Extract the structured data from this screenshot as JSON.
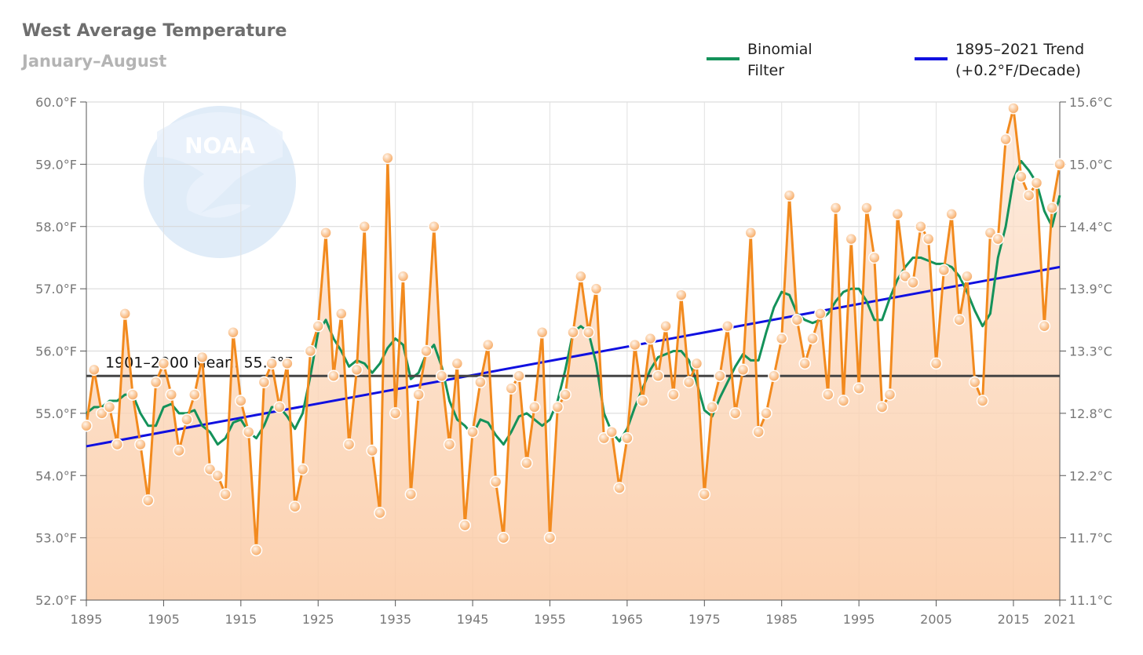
{
  "chart_data": {
    "type": "line",
    "title": "West Average Temperature",
    "subtitle": "January–August",
    "legend": [
      {
        "label": "Binomial\nFilter",
        "color": "#14925a"
      },
      {
        "label": "1895–2021 Trend\n(+0.2°F/Decade)",
        "color": "#1010e0"
      }
    ],
    "legend_position": "top-right",
    "mean_label": "1901–2000 Mean: 55.6°F",
    "mean_value": 55.6,
    "ylim": [
      52,
      60
    ],
    "xlim": [
      1895,
      2021
    ],
    "y_ticks_left": [
      "52.0°F",
      "53.0°F",
      "54.0°F",
      "55.0°F",
      "56.0°F",
      "57.0°F",
      "58.0°F",
      "59.0°F",
      "60.0°F"
    ],
    "y_ticks_right": [
      "11.1°C",
      "11.7°C",
      "12.2°C",
      "12.8°C",
      "13.3°C",
      "13.9°C",
      "14.4°C",
      "15.0°C",
      "15.6°C"
    ],
    "x_ticks": [
      "1895",
      "1905",
      "1915",
      "1925",
      "1935",
      "1945",
      "1955",
      "1965",
      "1975",
      "1985",
      "1995",
      "2005",
      "2015",
      "2021"
    ],
    "grid": true,
    "series": [
      {
        "name": "West Average Temperature",
        "color": "#f28a1e",
        "x_start": 1895,
        "values": [
          54.8,
          55.7,
          55.0,
          55.1,
          54.5,
          56.6,
          55.3,
          54.5,
          53.6,
          55.5,
          55.8,
          55.3,
          54.4,
          54.9,
          55.3,
          55.9,
          54.1,
          54.0,
          53.7,
          56.3,
          55.2,
          54.7,
          52.8,
          55.5,
          55.8,
          55.1,
          55.8,
          53.5,
          54.1,
          56.0,
          56.4,
          57.9,
          55.6,
          56.6,
          54.5,
          55.7,
          58.0,
          54.4,
          53.4,
          59.1,
          55.0,
          57.2,
          53.7,
          55.3,
          56.0,
          58.0,
          55.6,
          54.5,
          55.8,
          53.2,
          54.7,
          55.5,
          56.1,
          53.9,
          53.0,
          55.4,
          55.6,
          54.2,
          55.1,
          56.3,
          53.0,
          55.1,
          55.3,
          56.3,
          57.2,
          56.3,
          57.0,
          54.6,
          54.7,
          53.8,
          54.6,
          56.1,
          55.2,
          56.2,
          55.6,
          56.4,
          55.3,
          56.9,
          55.5,
          55.8,
          53.7,
          55.1,
          55.6,
          56.4,
          55.0,
          55.7,
          57.9,
          54.7,
          55.0,
          55.6,
          56.2,
          58.5,
          56.5,
          55.8,
          56.2,
          56.6,
          55.3,
          58.3,
          55.2,
          57.8,
          55.4,
          58.3,
          57.5,
          55.1,
          55.3,
          58.2,
          57.2,
          57.1,
          58.0,
          57.8,
          55.8,
          57.3,
          58.2,
          56.5,
          57.2,
          55.5,
          55.2,
          57.9,
          57.8,
          59.4,
          59.9,
          58.8,
          58.5,
          58.7,
          56.4,
          58.3,
          59.0
        ]
      },
      {
        "name": "Binomial Filter",
        "color": "#14925a",
        "x_start": 1895,
        "values": [
          55.0,
          55.1,
          55.1,
          55.2,
          55.2,
          55.3,
          55.3,
          55.0,
          54.8,
          54.8,
          55.1,
          55.15,
          55.0,
          55.0,
          55.05,
          54.8,
          54.7,
          54.5,
          54.6,
          54.85,
          54.9,
          54.7,
          54.6,
          54.8,
          55.1,
          55.1,
          54.95,
          54.75,
          55.0,
          55.6,
          56.3,
          56.5,
          56.2,
          56.0,
          55.75,
          55.85,
          55.8,
          55.65,
          55.8,
          56.05,
          56.2,
          56.1,
          55.55,
          55.65,
          55.95,
          56.1,
          55.75,
          55.2,
          54.9,
          54.8,
          54.65,
          54.9,
          54.85,
          54.65,
          54.5,
          54.7,
          54.95,
          55.0,
          54.9,
          54.8,
          54.9,
          55.2,
          55.7,
          56.3,
          56.4,
          56.3,
          55.8,
          55.0,
          54.7,
          54.55,
          54.75,
          55.1,
          55.4,
          55.7,
          55.9,
          55.95,
          56.0,
          56.0,
          55.85,
          55.5,
          55.05,
          54.95,
          55.25,
          55.5,
          55.75,
          55.95,
          55.85,
          55.85,
          56.3,
          56.7,
          56.95,
          56.9,
          56.6,
          56.5,
          56.45,
          56.5,
          56.6,
          56.8,
          56.95,
          57.0,
          57.0,
          56.8,
          56.5,
          56.5,
          56.85,
          57.15,
          57.35,
          57.5,
          57.5,
          57.45,
          57.4,
          57.4,
          57.35,
          57.2,
          56.95,
          56.65,
          56.4,
          56.6,
          57.5,
          58.0,
          58.75,
          59.05,
          58.9,
          58.7,
          58.25,
          58.0,
          58.5
        ]
      },
      {
        "name": "1895–2021 Trend",
        "color": "#1010e0",
        "x": [
          1895,
          2021
        ],
        "values": [
          54.47,
          57.35
        ]
      }
    ]
  },
  "watermark": {
    "text": "NOAA",
    "color": "#dbe9f6"
  }
}
